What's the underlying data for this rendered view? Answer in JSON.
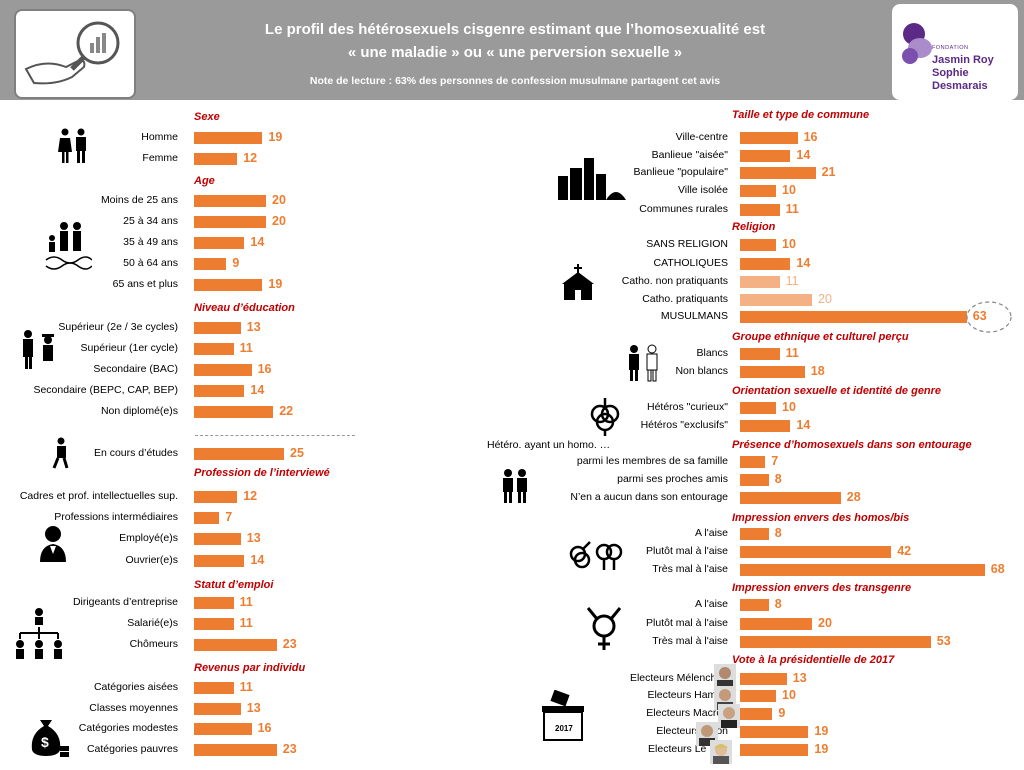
{
  "header": {
    "title_line1": "Le profil des hétérosexuels cisgenre estimant que l’homosexualité est",
    "title_line2": "« une maladie » ou « une perversion sexuelle »",
    "subtitle": "Note de lecture : 63% des personnes  de confession musulmane partagent cet avis",
    "logo_small": "FONDATION",
    "logo_line1": "Jasmin Roy",
    "logo_line2": "Sophie Desmarais"
  },
  "colors": {
    "bar": "#ed7d31",
    "bar_light": "#f4b183",
    "section_title": "#c00000",
    "header_bg": "#9a9a9a"
  },
  "chart_data": {
    "type": "bar",
    "unit": "%",
    "title": "Le profil des hétérosexuels cisgenre estimant que l’homosexualité est « une maladie » ou « une perversion sexuelle »",
    "left": [
      {
        "title": "Sexe",
        "icon": "man-woman-icon",
        "rows": [
          {
            "label": "Homme",
            "value": 19
          },
          {
            "label": "Femme",
            "value": 12
          }
        ]
      },
      {
        "title": "Age",
        "icon": "family-icon",
        "rows": [
          {
            "label": "Moins de 25 ans",
            "value": 20
          },
          {
            "label": "25 à 34 ans",
            "value": 20
          },
          {
            "label": "35 à 49 ans",
            "value": 14
          },
          {
            "label": "50 à 64 ans",
            "value": 9
          },
          {
            "label": "65 ans et plus",
            "value": 19
          }
        ]
      },
      {
        "title": "Niveau d’éducation",
        "icon": "graduates-icon",
        "rows": [
          {
            "label": "Supérieur (2e / 3e cycles)",
            "value": 13
          },
          {
            "label": "Supérieur (1er cycle)",
            "value": 11
          },
          {
            "label": "Secondaire (BAC)",
            "value": 16
          },
          {
            "label": "Secondaire (BEPC, CAP, BEP)",
            "value": 14
          },
          {
            "label": "Non diplomé(e)s",
            "value": 22
          },
          {
            "label": "En cours d’études",
            "value": 25
          }
        ]
      },
      {
        "title": "Profession de l’interviewé",
        "icon": "worker-icon",
        "rows": [
          {
            "label": "Cadres et prof. intellectuelles sup.",
            "value": 12
          },
          {
            "label": "Professions intermédiaires",
            "value": 7
          },
          {
            "label": "Employé(e)s",
            "value": 13
          },
          {
            "label": "Ouvrier(e)s",
            "value": 14
          }
        ]
      },
      {
        "title": "Statut d’emploi",
        "icon": "org-chart-icon",
        "rows": [
          {
            "label": "Dirigeants d’entreprise",
            "value": 11
          },
          {
            "label": "Salarié(e)s",
            "value": 11
          },
          {
            "label": "Chômeurs",
            "value": 23
          }
        ]
      },
      {
        "title": "Revenus par individu",
        "icon": "money-bag-icon",
        "rows": [
          {
            "label": "Catégories aisées",
            "value": 11
          },
          {
            "label": "Classes moyennes",
            "value": 13
          },
          {
            "label": "Catégories modestes",
            "value": 16
          },
          {
            "label": "Catégories pauvres",
            "value": 23
          }
        ]
      }
    ],
    "right": [
      {
        "title": "Taille et type de commune",
        "icon": "city-icon",
        "rows": [
          {
            "label": "Ville-centre",
            "value": 16
          },
          {
            "label": "Banlieue \"aisée\"",
            "value": 14
          },
          {
            "label": "Banlieue \"populaire\"",
            "value": 21
          },
          {
            "label": "Ville isolée",
            "value": 10
          },
          {
            "label": "Communes rurales",
            "value": 11
          }
        ]
      },
      {
        "title": "Religion",
        "icon": "church-icon",
        "rows": [
          {
            "label": "SANS RELIGION",
            "value": 10
          },
          {
            "label": "CATHOLIQUES",
            "value": 14
          },
          {
            "label": "Catho. non pratiquants",
            "value": 11,
            "light": true
          },
          {
            "label": "Catho. pratiquants",
            "value": 20,
            "light": true
          },
          {
            "label": "MUSULMANS",
            "value": 63,
            "highlight": true
          }
        ]
      },
      {
        "title": "Groupe ethnique et culturel perçu",
        "icon": "two-persons-icon",
        "rows": [
          {
            "label": "Blancs",
            "value": 11
          },
          {
            "label": "Non blancs",
            "value": 18
          }
        ]
      },
      {
        "title": "Orientation sexuelle et identité de genre",
        "icon": "gender-symbols-icon",
        "rows": [
          {
            "label": "Hétéros \"curieux\"",
            "value": 10
          },
          {
            "label": "Hétéros \"exclusifs\"",
            "value": 14
          }
        ]
      },
      {
        "title": "Présence d’homosexuels dans son entourage",
        "note": "Hétéro. ayant un homo. …",
        "icon": "couple-icon",
        "rows": [
          {
            "label": "parmi les membres de sa famille",
            "value": 7
          },
          {
            "label": "parmi ses proches amis",
            "value": 8
          },
          {
            "label": "N’en a aucun dans son entourage",
            "value": 28
          }
        ]
      },
      {
        "title": "Impression envers des homos/bis",
        "icon": "same-sex-symbols-icon",
        "rows": [
          {
            "label": "A l'aise",
            "value": 8
          },
          {
            "label": "Plutôt mal à l'aise",
            "value": 42
          },
          {
            "label": "Très mal à l'aise",
            "value": 68
          }
        ]
      },
      {
        "title": "Impression envers des transgenre",
        "icon": "transgender-symbol-icon",
        "rows": [
          {
            "label": "A l'aise",
            "value": 8
          },
          {
            "label": "Plutôt mal à l'aise",
            "value": 20
          },
          {
            "label": "Très mal à l'aise",
            "value": 53
          }
        ]
      },
      {
        "title": "Vote à la présidentielle de 2017",
        "icon": "ballot-box-icon",
        "ballot_label": "2017",
        "rows": [
          {
            "label": "Electeurs Mélenchon",
            "value": 13
          },
          {
            "label": "Electeurs Hamon",
            "value": 10
          },
          {
            "label": "Electeurs Macron",
            "value": 9
          },
          {
            "label": "Electeurs Fillon",
            "value": 19
          },
          {
            "label": "Electeurs Le Pen",
            "value": 19
          }
        ]
      }
    ]
  }
}
